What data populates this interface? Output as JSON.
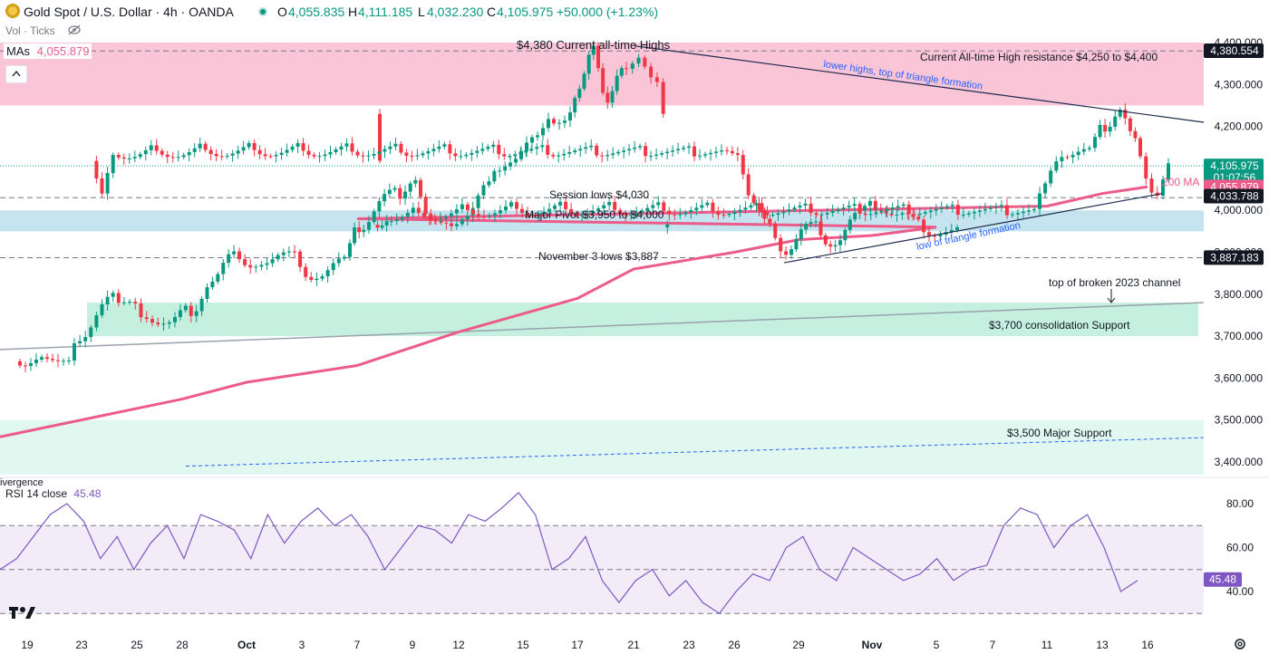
{
  "header": {
    "symbol": "Gold Spot / U.S. Dollar · 4h · OANDA",
    "open_label": "O",
    "open": "4,055.835",
    "high_label": "H",
    "high": "4,111.185",
    "low_label": "L",
    "low": "4,032.230",
    "close_label": "C",
    "close": "4,105.975",
    "change": "+50.000 (+1.23%)",
    "vol": "Vol · Ticks",
    "ma_label": "MAs",
    "ma_value": "4,055.879",
    "rsi_label": "RSI 14 close",
    "rsi_value": "45.48",
    "divergence_label": "ivergence"
  },
  "colors": {
    "up": "#089981",
    "down": "#f23645",
    "ma": "#ec5b8a",
    "rsi": "#7e57c2",
    "resistance_zone": "#f8bbd0",
    "pivot_zone": "#b3dbea",
    "support_zone": "#b2ebd4",
    "support2_zone": "#d6f5ea",
    "rsi_band": "#ede7f6",
    "trend": "#1e2a50"
  },
  "chart_data": {
    "type": "candlestick",
    "title": "Gold Spot / U.S. Dollar · 4h · OANDA",
    "ylim": [
      3370,
      4430
    ],
    "y_ticks": [
      3400,
      3500,
      3600,
      3700,
      3800,
      3900,
      4000,
      4100,
      4200,
      4300,
      4400
    ],
    "y_tick_labels": [
      "3,400.000",
      "3,500.000",
      "3,600.000",
      "3,700.000",
      "3,800.000",
      "3,900.000",
      "4,000.000",
      "4,100.000",
      "4,200.000",
      "4,300.000",
      "4,400.000"
    ],
    "x_tick_labels": [
      "19",
      "23",
      "25",
      "28",
      "Oct",
      "3",
      "7",
      "9",
      "12",
      "15",
      "17",
      "21",
      "23",
      "26",
      "29",
      "Nov",
      "5",
      "7",
      "11",
      "13",
      "16"
    ],
    "price_path": [
      [
        "19",
        3650
      ],
      [
        "19",
        3630
      ],
      [
        "23",
        3700
      ],
      [
        "23",
        3790
      ],
      [
        "25",
        3750
      ],
      [
        "25",
        3730
      ],
      [
        "28",
        3760
      ],
      [
        "28",
        3830
      ],
      [
        "28",
        3890
      ],
      [
        "Oct",
        3870
      ],
      [
        "Oct",
        3890
      ],
      [
        "3",
        3840
      ],
      [
        "3",
        3880
      ],
      [
        "7",
        3960
      ],
      [
        "7",
        4040
      ],
      [
        "9",
        4060
      ],
      [
        "9",
        3980
      ],
      [
        "9",
        3960
      ],
      [
        "12",
        3990
      ],
      [
        "12",
        4060
      ],
      [
        "12",
        4120
      ],
      [
        "15",
        4170
      ],
      [
        "15",
        4220
      ],
      [
        "17",
        4290
      ],
      [
        "17",
        4380
      ],
      [
        "17",
        4260
      ],
      [
        "17",
        4330
      ],
      [
        "21",
        4370
      ],
      [
        "21",
        4300
      ],
      [
        "21",
        4130
      ],
      [
        "23",
        4040
      ],
      [
        "23",
        4120
      ],
      [
        "23",
        4140
      ],
      [
        "26",
        4120
      ],
      [
        "26",
        4020
      ],
      [
        "26",
        3960
      ],
      [
        "26",
        3900
      ],
      [
        "29",
        3960
      ],
      [
        "29",
        3920
      ],
      [
        "29",
        3990
      ],
      [
        "Nov",
        4010
      ],
      [
        "Nov",
        3990
      ],
      [
        "Nov",
        3960
      ],
      [
        "5",
        3950
      ],
      [
        "5",
        3960
      ],
      [
        "7",
        3980
      ],
      [
        "7",
        4000
      ],
      [
        "11",
        4130
      ],
      [
        "11",
        4140
      ],
      [
        "13",
        4200
      ],
      [
        "13",
        4240
      ],
      [
        "13",
        4160
      ],
      [
        "16",
        4035
      ],
      [
        "16",
        4106
      ]
    ],
    "series": [
      {
        "name": "200 MA",
        "x": [
          "19",
          "28",
          "Oct",
          "7",
          "12",
          "17",
          "21",
          "26",
          "29",
          "Nov",
          "5",
          "7",
          "11",
          "13",
          "16"
        ],
        "values": [
          3460,
          3550,
          3590,
          3630,
          3710,
          3790,
          3860,
          3900,
          3930,
          3940,
          3960,
          3980,
          4010,
          4040,
          4056
        ]
      }
    ],
    "price_labels": [
      {
        "text": "4,380.554",
        "value": 4380.554
      },
      {
        "text": "4,105.975",
        "value": 4105.975,
        "sub": "01:07:56"
      },
      {
        "text": "4,055.879",
        "value": 4055.879
      },
      {
        "text": "4,033.788",
        "value": 4033.788
      },
      {
        "text": "3,887.183",
        "value": 3887.183
      }
    ],
    "zones": [
      {
        "name": "Current All-time High resistance",
        "from": 4250,
        "to": 4400
      },
      {
        "name": "Major Pivot",
        "from": 3950,
        "to": 4000
      },
      {
        "name": "$3,700 consolidation Support",
        "from": 3700,
        "to": 3780
      },
      {
        "name": "$3,500 Major Support",
        "from": 3370,
        "to": 3500
      }
    ],
    "annotations": [
      "$4,380 Current all-time Highs",
      "Current All-time High resistance $4,250 to $4,400",
      "lower highs, top of triangle formation",
      "Session lows $4,030",
      "Major Pivot $3,950 to $4,000",
      "November 3 lows $3,887",
      "low of triangle formation",
      "top of broken 2023 channel",
      "$3,700 consolidation Support",
      "$3,500 Major Support",
      "200 MA"
    ],
    "rsi": {
      "label": "RSI 14 close",
      "current": 45.48,
      "ylim": [
        25,
        90
      ],
      "y_tick_labels": [
        "40.00",
        "60.00",
        "80.00"
      ],
      "bands": [
        30,
        50,
        70
      ],
      "values": [
        50,
        55,
        65,
        75,
        80,
        72,
        55,
        65,
        50,
        62,
        70,
        55,
        75,
        72,
        68,
        55,
        75,
        62,
        72,
        78,
        70,
        75,
        65,
        50,
        60,
        70,
        68,
        62,
        75,
        72,
        78,
        85,
        75,
        50,
        55,
        65,
        45,
        35,
        45,
        50,
        38,
        45,
        35,
        30,
        40,
        48,
        45,
        60,
        65,
        50,
        45,
        60,
        55,
        50,
        45,
        48,
        55,
        45,
        50,
        52,
        70,
        78,
        75,
        60,
        70,
        75,
        60,
        40,
        45
      ]
    }
  }
}
